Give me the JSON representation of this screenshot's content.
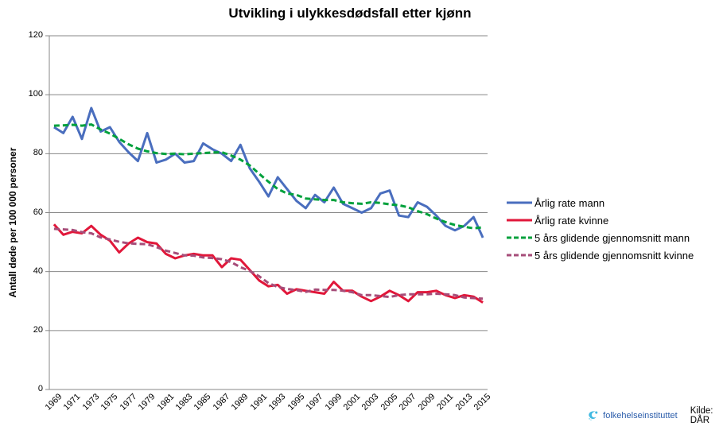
{
  "chart_data": {
    "type": "line",
    "title": "Utvikling i ulykkesdødsfall etter kjønn",
    "ylabel": "Antall døde per 100 000 personer",
    "xlabel": "",
    "ylim": [
      0,
      120
    ],
    "yticks": [
      0,
      20,
      40,
      60,
      80,
      100,
      120
    ],
    "grid": "horizontal",
    "legend_position": "right",
    "xtick_step": 2,
    "x": [
      1969,
      1970,
      1971,
      1972,
      1973,
      1974,
      1975,
      1976,
      1977,
      1978,
      1979,
      1980,
      1981,
      1982,
      1983,
      1984,
      1985,
      1986,
      1987,
      1988,
      1989,
      1990,
      1991,
      1992,
      1993,
      1994,
      1995,
      1996,
      1997,
      1998,
      1999,
      2000,
      2001,
      2002,
      2003,
      2004,
      2005,
      2006,
      2007,
      2008,
      2009,
      2010,
      2011,
      2012,
      2013,
      2014,
      2015
    ],
    "series": [
      {
        "name": "Årlig rate mann",
        "color": "#4a6ebe",
        "dash": null,
        "values": [
          89,
          87,
          92.5,
          85,
          95.5,
          87.5,
          89,
          84,
          80.5,
          77.5,
          87,
          77,
          78,
          80,
          77,
          77.5,
          83.5,
          81.5,
          80,
          77.5,
          83,
          75,
          70.5,
          65.5,
          72,
          68,
          64,
          61.5,
          66,
          63.5,
          68.5,
          63,
          61.5,
          60,
          61.5,
          66.5,
          67.5,
          59,
          58.5,
          63.5,
          62,
          59,
          55.5,
          54,
          55.5,
          58.5,
          51.5
        ]
      },
      {
        "name": "Årlig rate kvinne",
        "color": "#e1173a",
        "dash": null,
        "values": [
          56,
          52.5,
          53.5,
          53,
          55.5,
          52.5,
          50.5,
          46.5,
          49.5,
          51.5,
          50,
          49.5,
          46,
          44.5,
          45.5,
          46,
          45.5,
          45.5,
          41.5,
          44.5,
          44,
          40.5,
          37,
          35,
          35.5,
          32.5,
          34,
          33.5,
          33,
          32.5,
          36.5,
          33.5,
          33.5,
          31.5,
          30,
          31.5,
          33.5,
          32,
          30,
          33,
          33,
          33.5,
          32,
          31,
          32,
          31.5,
          29.5
        ]
      },
      {
        "name": "5 års glidende gjennomsnitt mann",
        "color": "#00a13c",
        "dash": "7,4",
        "values": [
          89.5,
          89.6,
          89.8,
          89.5,
          89.9,
          88.2,
          86.8,
          85,
          83.2,
          81.7,
          80.8,
          80.2,
          79.9,
          80,
          79.8,
          80,
          80.2,
          80.4,
          80.5,
          79.4,
          78,
          76,
          73.2,
          70.5,
          68,
          66.5,
          66,
          64.8,
          64.5,
          64.3,
          64.3,
          63.5,
          63.2,
          63,
          63.5,
          63.3,
          62.8,
          62.5,
          61.8,
          60.5,
          59.5,
          58,
          56.8,
          55.8,
          55.2,
          54.7,
          55
        ]
      },
      {
        "name": "5 års glidende gjennomsnitt kvinne",
        "color": "#a64d79",
        "dash": "7,4",
        "values": [
          54.5,
          54.3,
          54.1,
          53.4,
          53,
          51.6,
          50.9,
          50.1,
          49.6,
          49.4,
          49.3,
          48.3,
          47.1,
          46.3,
          45.5,
          45.4,
          44.8,
          44.6,
          44.2,
          43.2,
          41.5,
          40.2,
          38.4,
          36.1,
          34.8,
          34.1,
          33.7,
          33.1,
          33.9,
          33.8,
          33.8,
          33.5,
          33,
          32,
          32,
          31.7,
          31.4,
          32,
          32.3,
          32.3,
          32.3,
          32.5,
          32.3,
          32,
          31.2,
          31,
          30.8
        ]
      }
    ]
  },
  "footer": {
    "logo_text": "folkehelseinstituttet",
    "source_label": "Kilde: DÅR"
  },
  "colors": {
    "grid": "#878787",
    "logo_icon": "#41b9e1",
    "logo_icon_light": "#7fd4ec",
    "logo_text_blue": "#2a5caa"
  }
}
